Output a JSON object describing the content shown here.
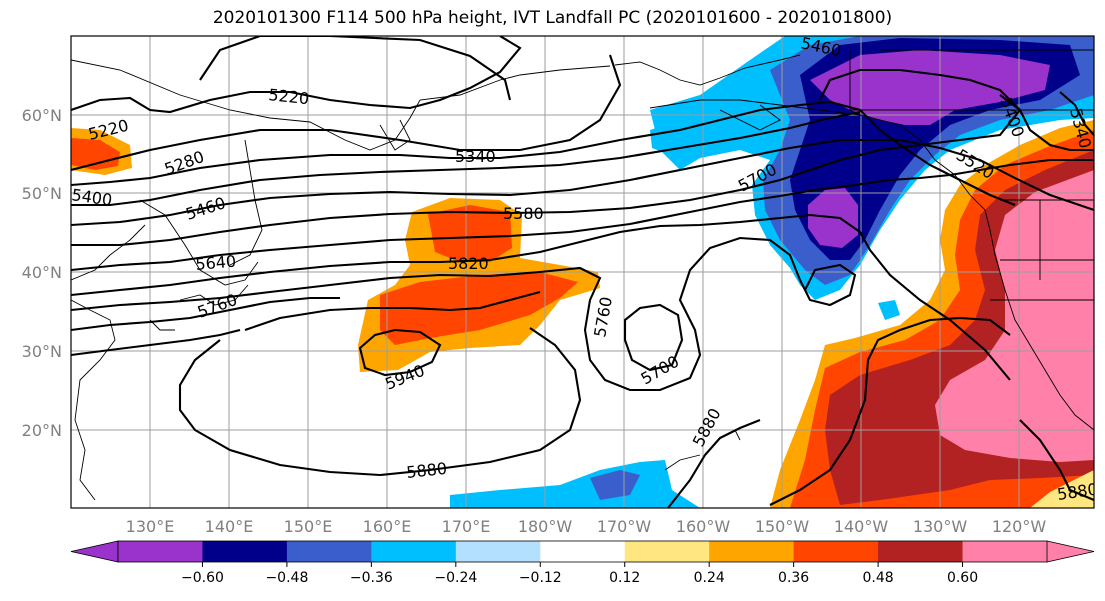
{
  "title": "2020101300 F114 500 hPa height, IVT Landfall PC (2020101600 - 2020101800)",
  "map": {
    "lon_labels": [
      "130°E",
      "140°E",
      "150°E",
      "160°E",
      "170°E",
      "180°W",
      "170°W",
      "160°W",
      "150°W",
      "140°W",
      "130°W",
      "120°W"
    ],
    "lat_labels": [
      "60°N",
      "50°N",
      "40°N",
      "30°N",
      "20°N"
    ],
    "contour_labels": [
      "5220",
      "5220",
      "5280",
      "5340",
      "5400",
      "5460",
      "5580",
      "5640",
      "5760",
      "5820",
      "5940",
      "5880",
      "5760",
      "5700",
      "5700",
      "5880",
      "5460",
      "5400",
      "5520",
      "5340",
      "5880"
    ]
  },
  "colorbar": {
    "colors": [
      "#9933cc",
      "#00008b",
      "#3a5fcd",
      "#00bfff",
      "#b3e0ff",
      "#ffffff",
      "#ffe680",
      "#ffa500",
      "#ff4500",
      "#b22222",
      "#ff80a8"
    ],
    "ticks": [
      "−0.60",
      "−0.48",
      "−0.36",
      "−0.24",
      "−0.12",
      "0.12",
      "0.24",
      "0.36",
      "0.48",
      "0.60"
    ]
  }
}
